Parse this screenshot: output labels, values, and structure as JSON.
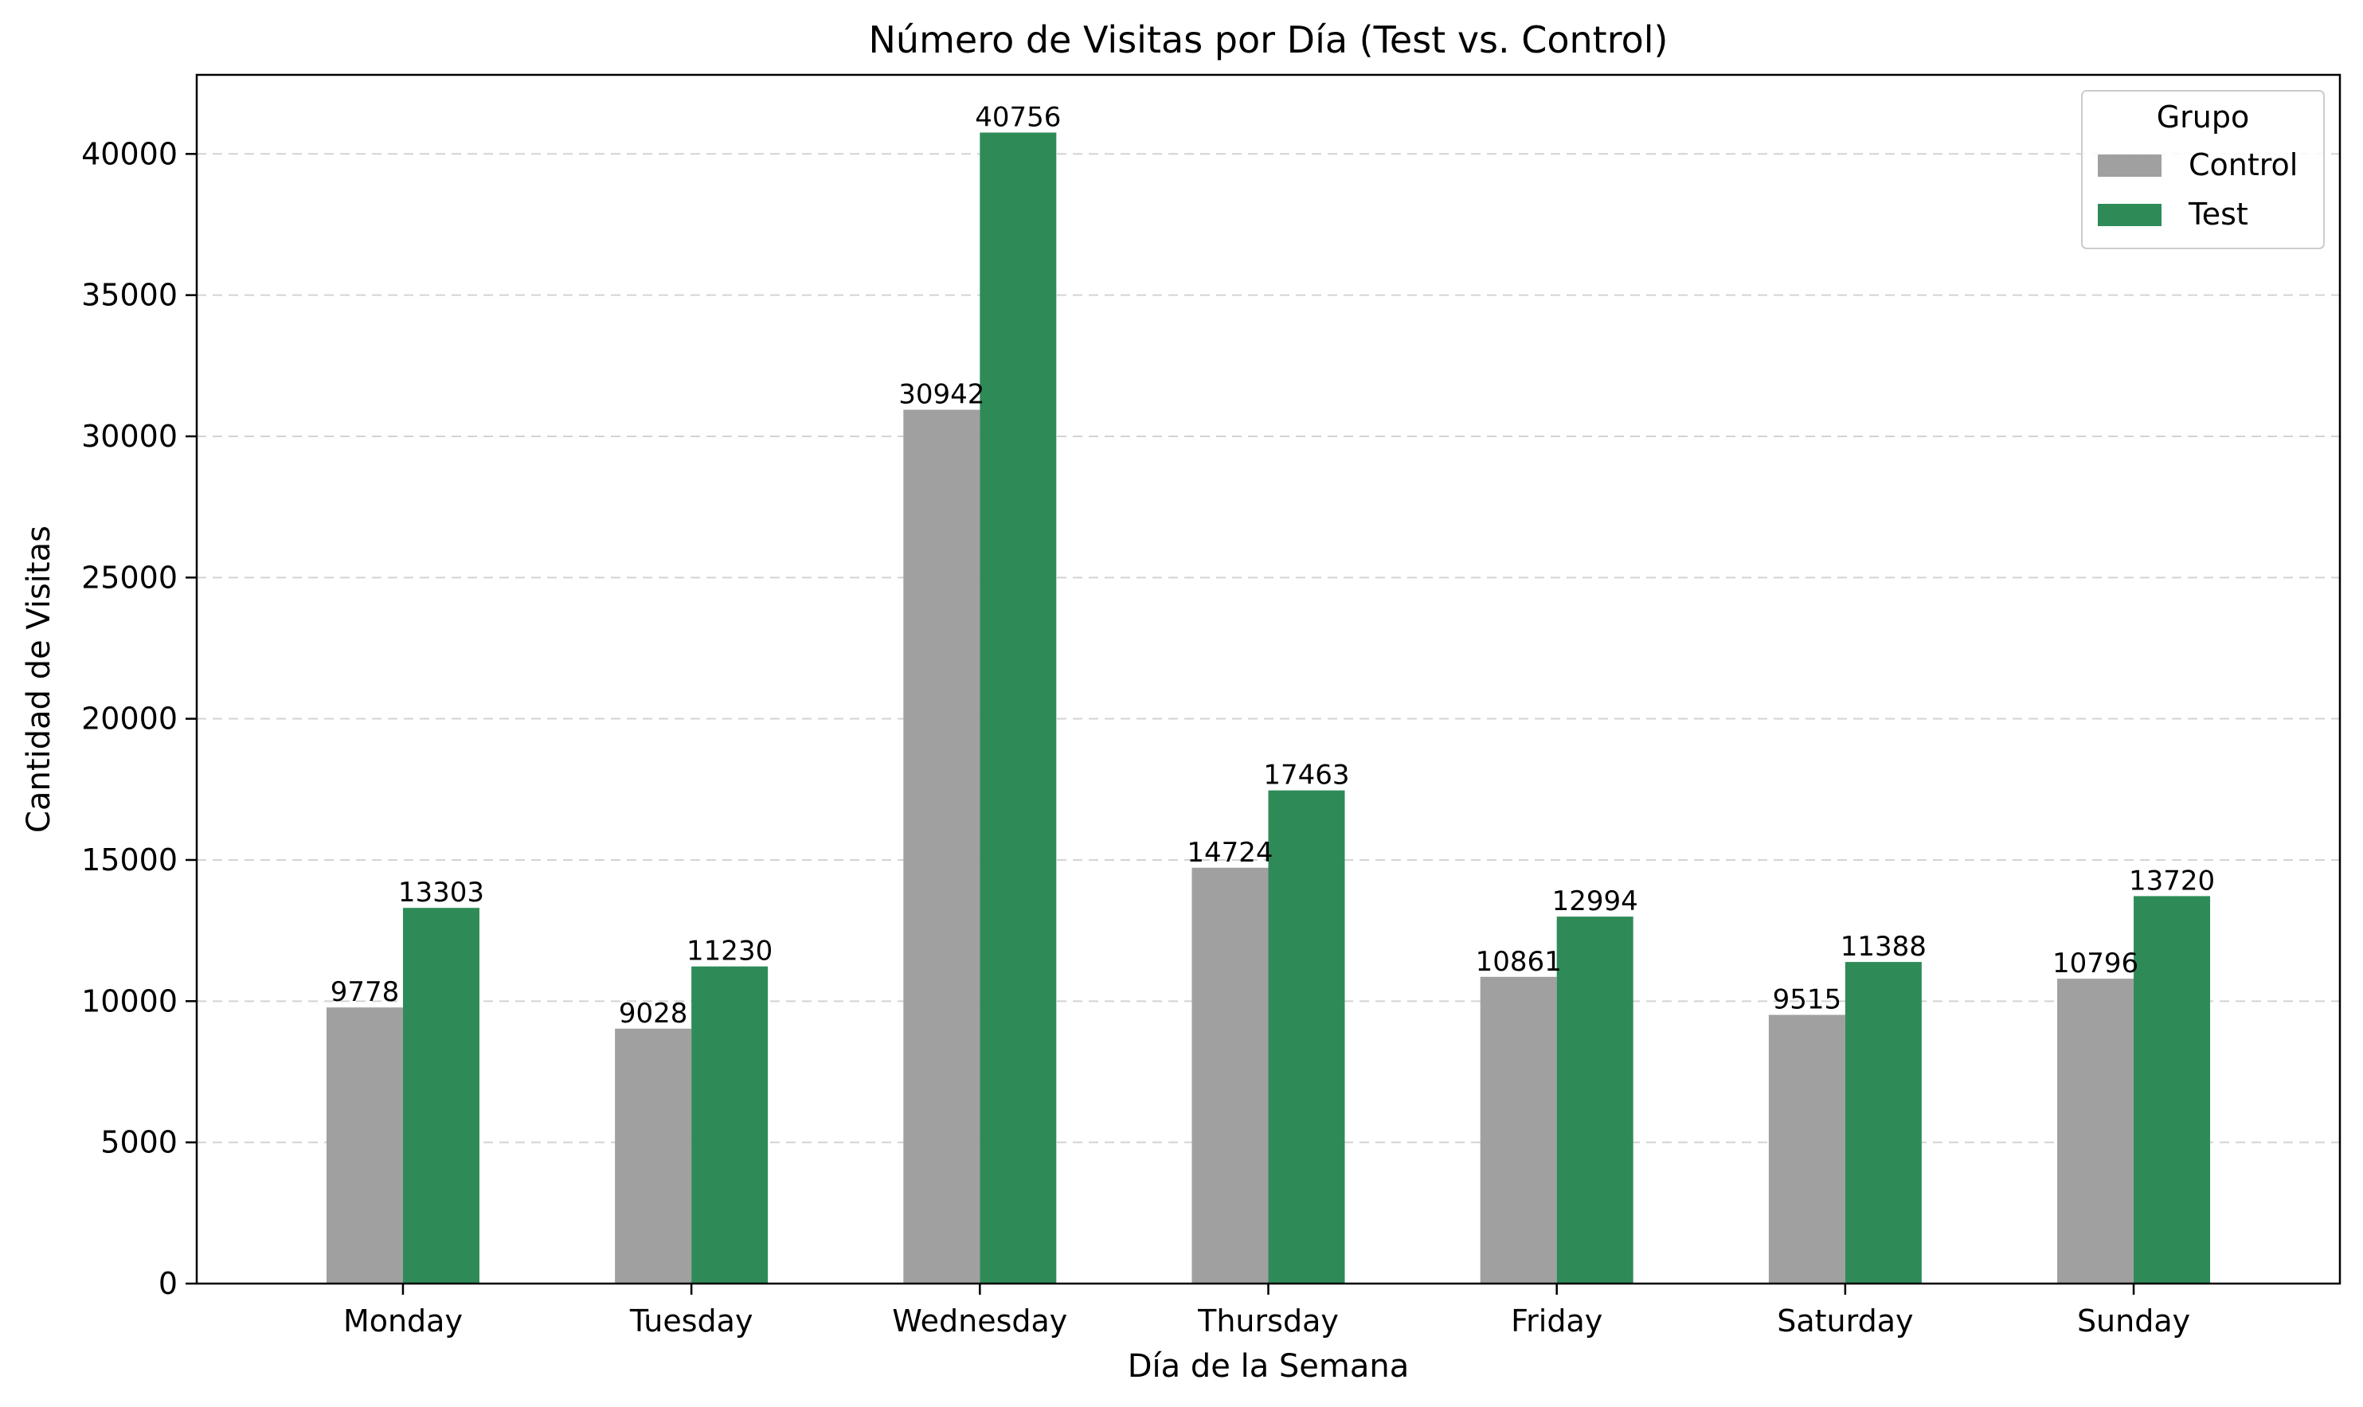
{
  "chart_data": {
    "type": "bar",
    "title": "Número de Visitas por Día (Test vs. Control)",
    "xlabel": "Día de la Semana",
    "ylabel": "Cantidad de Visitas",
    "categories": [
      "Monday",
      "Tuesday",
      "Wednesday",
      "Thursday",
      "Friday",
      "Saturday",
      "Sunday"
    ],
    "series": [
      {
        "name": "Control",
        "color": "#a0a0a0",
        "values": [
          9778,
          9028,
          30942,
          14724,
          10861,
          9515,
          10796
        ]
      },
      {
        "name": "Test",
        "color": "#2e8b57",
        "values": [
          13303,
          11230,
          40756,
          17463,
          12994,
          11388,
          13720
        ]
      }
    ],
    "ylim": [
      0,
      42800
    ],
    "yticks": [
      0,
      5000,
      10000,
      15000,
      20000,
      25000,
      30000,
      35000,
      40000
    ],
    "grid": "y-dashed",
    "legend": {
      "title": "Grupo",
      "position": "top-right"
    }
  }
}
